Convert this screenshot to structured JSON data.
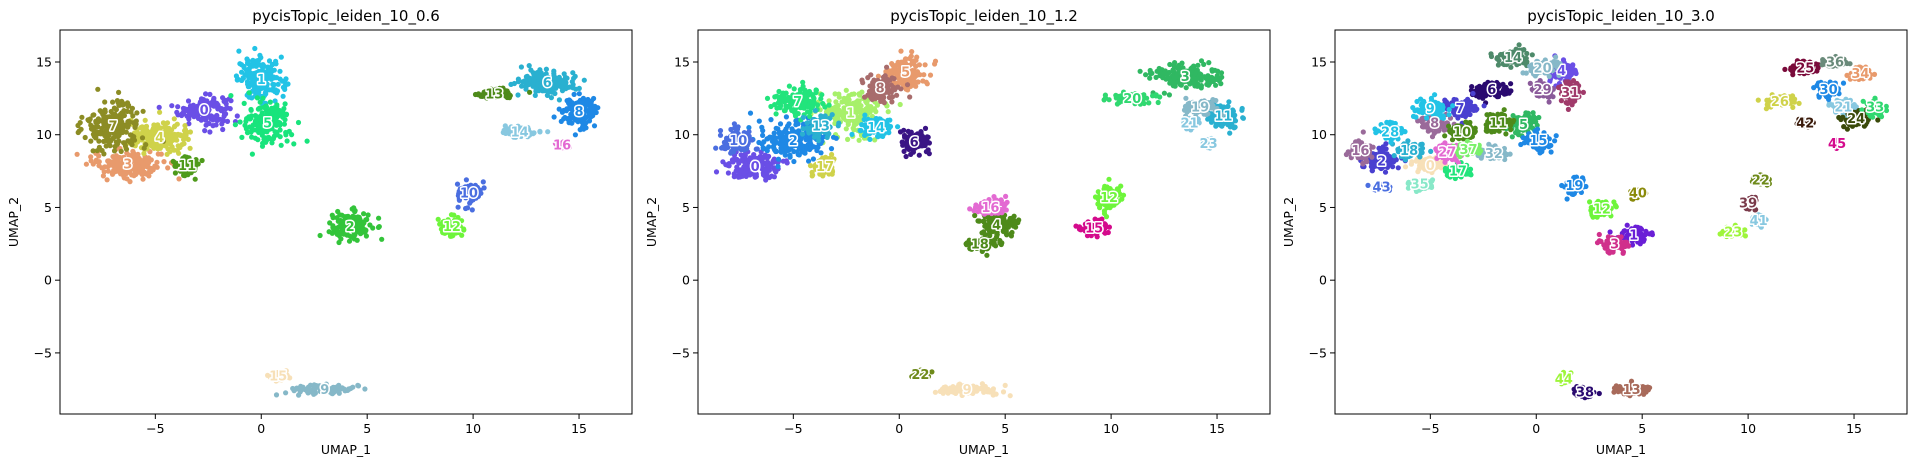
{
  "chart_data": [
    {
      "type": "scatter",
      "title": "pycisTopic_leiden_10_0.6",
      "xlabel": "UMAP_1",
      "ylabel": "UMAP_2",
      "xlim": [
        -9.5,
        17.5
      ],
      "ylim": [
        -9.2,
        17.2
      ],
      "xticks": [
        -5,
        0,
        5,
        10,
        15
      ],
      "yticks": [
        -5,
        0,
        5,
        10,
        15
      ],
      "clusters": [
        {
          "label": "0",
          "x": -2.7,
          "y": 11.7,
          "sx": 1.1,
          "sy": 0.9,
          "color": "#6a4fe6"
        },
        {
          "label": "1",
          "x": 0.0,
          "y": 13.8,
          "sx": 1.0,
          "sy": 1.3,
          "color": "#22c3e6"
        },
        {
          "label": "2",
          "x": 4.2,
          "y": 3.7,
          "sx": 0.9,
          "sy": 0.9,
          "color": "#33c43a"
        },
        {
          "label": "3",
          "x": -6.3,
          "y": 8.0,
          "sx": 1.5,
          "sy": 0.9,
          "color": "#e89a6c"
        },
        {
          "label": "4",
          "x": -4.8,
          "y": 9.8,
          "sx": 1.4,
          "sy": 1.0,
          "color": "#cfd24a"
        },
        {
          "label": "5",
          "x": 0.3,
          "y": 10.8,
          "sx": 1.0,
          "sy": 1.3,
          "color": "#18e47c"
        },
        {
          "label": "6",
          "x": 13.5,
          "y": 13.6,
          "sx": 1.3,
          "sy": 0.8,
          "color": "#2ab0d0"
        },
        {
          "label": "7",
          "x": -7.0,
          "y": 10.6,
          "sx": 1.2,
          "sy": 1.4,
          "color": "#8c8c24"
        },
        {
          "label": "8",
          "x": 15.0,
          "y": 11.6,
          "sx": 0.8,
          "sy": 0.9,
          "color": "#1e88e5"
        },
        {
          "label": "9",
          "x": 3.0,
          "y": -7.5,
          "sx": 1.4,
          "sy": 0.3,
          "color": "#86b8c8"
        },
        {
          "label": "10",
          "x": 9.8,
          "y": 6.0,
          "sx": 0.5,
          "sy": 0.7,
          "color": "#4a6ee0"
        },
        {
          "label": "11",
          "x": -3.5,
          "y": 7.9,
          "sx": 0.5,
          "sy": 0.6,
          "color": "#4e9a1a"
        },
        {
          "label": "12",
          "x": 9.0,
          "y": 3.7,
          "sx": 0.5,
          "sy": 0.5,
          "color": "#6ef53b"
        },
        {
          "label": "13",
          "x": 11.0,
          "y": 12.8,
          "sx": 0.8,
          "sy": 0.3,
          "color": "#4e8a1a"
        },
        {
          "label": "14",
          "x": 12.2,
          "y": 10.2,
          "sx": 0.7,
          "sy": 0.3,
          "color": "#88c8e0"
        },
        {
          "label": "15",
          "x": 0.8,
          "y": -6.6,
          "sx": 0.3,
          "sy": 0.3,
          "color": "#f7e0b8"
        },
        {
          "label": "16",
          "x": 14.2,
          "y": 9.3,
          "sx": 0.2,
          "sy": 0.2,
          "color": "#e36ad2"
        }
      ]
    },
    {
      "type": "scatter",
      "title": "pycisTopic_leiden_10_1.2",
      "xlabel": "UMAP_1",
      "ylabel": "UMAP_2",
      "xlim": [
        -9.5,
        17.5
      ],
      "ylim": [
        -9.2,
        17.2
      ],
      "xticks": [
        -5,
        0,
        5,
        10,
        15
      ],
      "yticks": [
        -5,
        0,
        5,
        10,
        15
      ],
      "clusters": [
        {
          "label": "0",
          "x": -6.8,
          "y": 7.8,
          "sx": 1.2,
          "sy": 0.8,
          "color": "#6a4fe6"
        },
        {
          "label": "1",
          "x": -2.3,
          "y": 11.5,
          "sx": 1.3,
          "sy": 1.3,
          "color": "#a7f06a"
        },
        {
          "label": "2",
          "x": -5.0,
          "y": 9.6,
          "sx": 1.4,
          "sy": 1.2,
          "color": "#1e88e5"
        },
        {
          "label": "3",
          "x": 13.5,
          "y": 14.0,
          "sx": 1.6,
          "sy": 0.8,
          "color": "#30b862"
        },
        {
          "label": "4",
          "x": 4.6,
          "y": 3.8,
          "sx": 0.9,
          "sy": 0.8,
          "color": "#4e8a1a"
        },
        {
          "label": "5",
          "x": 0.3,
          "y": 14.3,
          "sx": 0.9,
          "sy": 1.0,
          "color": "#e89a6c"
        },
        {
          "label": "6",
          "x": 0.7,
          "y": 9.5,
          "sx": 0.7,
          "sy": 0.7,
          "color": "#3a1485"
        },
        {
          "label": "7",
          "x": -4.8,
          "y": 12.3,
          "sx": 1.1,
          "sy": 0.9,
          "color": "#22e47c"
        },
        {
          "label": "8",
          "x": -0.9,
          "y": 13.2,
          "sx": 0.7,
          "sy": 0.8,
          "color": "#a86c6c"
        },
        {
          "label": "9",
          "x": 3.2,
          "y": -7.5,
          "sx": 1.4,
          "sy": 0.3,
          "color": "#f7e0b8"
        },
        {
          "label": "10",
          "x": -7.6,
          "y": 9.6,
          "sx": 0.6,
          "sy": 0.8,
          "color": "#4a6ee0"
        },
        {
          "label": "11",
          "x": 15.3,
          "y": 11.3,
          "sx": 0.6,
          "sy": 0.8,
          "color": "#2ab0d0"
        },
        {
          "label": "12",
          "x": 9.9,
          "y": 5.7,
          "sx": 0.5,
          "sy": 0.7,
          "color": "#6ef53b"
        },
        {
          "label": "13",
          "x": -3.7,
          "y": 10.6,
          "sx": 0.7,
          "sy": 0.7,
          "color": "#2ab0d0"
        },
        {
          "label": "14",
          "x": -1.1,
          "y": 10.5,
          "sx": 0.7,
          "sy": 0.6,
          "color": "#22c3e6"
        },
        {
          "label": "15",
          "x": 9.2,
          "y": 3.6,
          "sx": 0.6,
          "sy": 0.5,
          "color": "#d40a8c"
        },
        {
          "label": "16",
          "x": 4.3,
          "y": 5.0,
          "sx": 0.7,
          "sy": 0.5,
          "color": "#e36ad2"
        },
        {
          "label": "17",
          "x": -3.5,
          "y": 7.8,
          "sx": 0.5,
          "sy": 0.6,
          "color": "#cfd24a"
        },
        {
          "label": "18",
          "x": 3.8,
          "y": 2.5,
          "sx": 0.6,
          "sy": 0.4,
          "color": "#4e8a1a"
        },
        {
          "label": "19",
          "x": 14.2,
          "y": 11.9,
          "sx": 0.6,
          "sy": 0.5,
          "color": "#86b8c8"
        },
        {
          "label": "20",
          "x": 11.0,
          "y": 12.5,
          "sx": 0.9,
          "sy": 0.3,
          "color": "#30d870"
        },
        {
          "label": "21",
          "x": 13.7,
          "y": 10.8,
          "sx": 0.4,
          "sy": 0.3,
          "color": "#88c8e0"
        },
        {
          "label": "22",
          "x": 1.0,
          "y": -6.5,
          "sx": 0.3,
          "sy": 0.2,
          "color": "#6e8a1a"
        },
        {
          "label": "23",
          "x": 14.6,
          "y": 9.4,
          "sx": 0.2,
          "sy": 0.2,
          "color": "#88c8e0"
        }
      ]
    },
    {
      "type": "scatter",
      "title": "pycisTopic_leiden_10_3.0",
      "xlabel": "UMAP_1",
      "ylabel": "UMAP_2",
      "xlim": [
        -9.5,
        17.5
      ],
      "ylim": [
        -9.2,
        17.2
      ],
      "xticks": [
        -5,
        0,
        5,
        10,
        15
      ],
      "yticks": [
        -5,
        0,
        5,
        10,
        15
      ],
      "clusters": [
        {
          "label": "0",
          "x": -5.0,
          "y": 7.9,
          "sx": 0.6,
          "sy": 0.5,
          "color": "#f7e0b8"
        },
        {
          "label": "1",
          "x": 4.6,
          "y": 3.1,
          "sx": 0.6,
          "sy": 0.5,
          "color": "#6a1fd6"
        },
        {
          "label": "2",
          "x": -7.3,
          "y": 8.2,
          "sx": 0.7,
          "sy": 0.8,
          "color": "#4a40d0"
        },
        {
          "label": "3",
          "x": 3.7,
          "y": 2.5,
          "sx": 0.6,
          "sy": 0.5,
          "color": "#d0308c"
        },
        {
          "label": "4",
          "x": 1.2,
          "y": 14.4,
          "sx": 0.6,
          "sy": 0.7,
          "color": "#6a4fe6"
        },
        {
          "label": "5",
          "x": -0.6,
          "y": 10.7,
          "sx": 0.6,
          "sy": 0.7,
          "color": "#30b862"
        },
        {
          "label": "6",
          "x": -2.1,
          "y": 13.1,
          "sx": 0.8,
          "sy": 0.5,
          "color": "#2a0a70"
        },
        {
          "label": "7",
          "x": -3.6,
          "y": 11.8,
          "sx": 0.6,
          "sy": 0.6,
          "color": "#4a40d0"
        },
        {
          "label": "8",
          "x": -4.8,
          "y": 10.8,
          "sx": 0.6,
          "sy": 0.6,
          "color": "#9a6a9a"
        },
        {
          "label": "9",
          "x": -5.0,
          "y": 11.8,
          "sx": 0.7,
          "sy": 0.6,
          "color": "#22c3e6"
        },
        {
          "label": "10",
          "x": -3.5,
          "y": 10.2,
          "sx": 0.6,
          "sy": 0.5,
          "color": "#4e8a1a"
        },
        {
          "label": "11",
          "x": -1.8,
          "y": 10.8,
          "sx": 0.6,
          "sy": 0.6,
          "color": "#4e8a1a"
        },
        {
          "label": "12",
          "x": 3.1,
          "y": 4.9,
          "sx": 0.5,
          "sy": 0.5,
          "color": "#6ef53b"
        },
        {
          "label": "13",
          "x": 4.5,
          "y": -7.5,
          "sx": 0.9,
          "sy": 0.3,
          "color": "#a86a5a"
        },
        {
          "label": "14",
          "x": -1.1,
          "y": 15.3,
          "sx": 0.7,
          "sy": 0.5,
          "color": "#4e8a6a"
        },
        {
          "label": "15",
          "x": 0.1,
          "y": 9.6,
          "sx": 0.6,
          "sy": 0.6,
          "color": "#1e88e5"
        },
        {
          "label": "16",
          "x": -8.3,
          "y": 8.9,
          "sx": 0.5,
          "sy": 0.6,
          "color": "#9a6a9a"
        },
        {
          "label": "17",
          "x": -3.7,
          "y": 7.5,
          "sx": 0.6,
          "sy": 0.4,
          "color": "#22e47c"
        },
        {
          "label": "18",
          "x": -6.0,
          "y": 8.9,
          "sx": 0.6,
          "sy": 0.5,
          "color": "#2ab0d0"
        },
        {
          "label": "19",
          "x": 1.8,
          "y": 6.5,
          "sx": 0.4,
          "sy": 0.6,
          "color": "#1e88e5"
        },
        {
          "label": "20",
          "x": 0.3,
          "y": 14.6,
          "sx": 0.6,
          "sy": 0.5,
          "color": "#86b8c8"
        },
        {
          "label": "21",
          "x": 14.5,
          "y": 11.9,
          "sx": 0.5,
          "sy": 0.4,
          "color": "#88c8e0"
        },
        {
          "label": "22",
          "x": 10.6,
          "y": 6.9,
          "sx": 0.3,
          "sy": 0.3,
          "color": "#6e8a1a"
        },
        {
          "label": "23",
          "x": 9.3,
          "y": 3.3,
          "sx": 0.5,
          "sy": 0.3,
          "color": "#9ef53b"
        },
        {
          "label": "24",
          "x": 15.1,
          "y": 11.1,
          "sx": 0.5,
          "sy": 0.5,
          "color": "#3a4a0a"
        },
        {
          "label": "25",
          "x": 12.7,
          "y": 14.6,
          "sx": 0.5,
          "sy": 0.4,
          "color": "#7a0a3a"
        },
        {
          "label": "26",
          "x": 11.5,
          "y": 12.3,
          "sx": 0.6,
          "sy": 0.3,
          "color": "#cfd24a"
        },
        {
          "label": "27",
          "x": -4.2,
          "y": 8.8,
          "sx": 0.5,
          "sy": 0.5,
          "color": "#e36ad2"
        },
        {
          "label": "28",
          "x": -6.9,
          "y": 10.2,
          "sx": 0.5,
          "sy": 0.5,
          "color": "#22c3e6"
        },
        {
          "label": "29",
          "x": 0.3,
          "y": 13.1,
          "sx": 0.5,
          "sy": 0.5,
          "color": "#8a5a9a"
        },
        {
          "label": "30",
          "x": 13.8,
          "y": 13.1,
          "sx": 0.5,
          "sy": 0.5,
          "color": "#1e88e5"
        },
        {
          "label": "31",
          "x": 1.6,
          "y": 12.9,
          "sx": 0.4,
          "sy": 0.6,
          "color": "#a03a6a"
        },
        {
          "label": "32",
          "x": -2.0,
          "y": 8.7,
          "sx": 0.6,
          "sy": 0.4,
          "color": "#86b8c8"
        },
        {
          "label": "33",
          "x": 16.0,
          "y": 11.9,
          "sx": 0.4,
          "sy": 0.5,
          "color": "#30d870"
        },
        {
          "label": "34",
          "x": 15.3,
          "y": 14.2,
          "sx": 0.4,
          "sy": 0.4,
          "color": "#e89a6c"
        },
        {
          "label": "35",
          "x": -5.5,
          "y": 6.6,
          "sx": 0.5,
          "sy": 0.3,
          "color": "#88e8c8"
        },
        {
          "label": "36",
          "x": 14.1,
          "y": 15.0,
          "sx": 0.5,
          "sy": 0.3,
          "color": "#6a8a7a"
        },
        {
          "label": "37",
          "x": -3.2,
          "y": 9.0,
          "sx": 0.5,
          "sy": 0.4,
          "color": "#7af06a"
        },
        {
          "label": "38",
          "x": 2.3,
          "y": -7.7,
          "sx": 0.4,
          "sy": 0.3,
          "color": "#2a0a70"
        },
        {
          "label": "39",
          "x": 10.0,
          "y": 5.3,
          "sx": 0.3,
          "sy": 0.3,
          "color": "#7a3a4a"
        },
        {
          "label": "40",
          "x": 4.8,
          "y": 6.0,
          "sx": 0.3,
          "sy": 0.3,
          "color": "#8a8a0a"
        },
        {
          "label": "41",
          "x": 10.5,
          "y": 4.1,
          "sx": 0.3,
          "sy": 0.3,
          "color": "#88c8e0"
        },
        {
          "label": "42",
          "x": 12.7,
          "y": 10.8,
          "sx": 0.3,
          "sy": 0.2,
          "color": "#3a1a0a"
        },
        {
          "label": "43",
          "x": -7.3,
          "y": 6.4,
          "sx": 0.4,
          "sy": 0.2,
          "color": "#4a6ee0"
        },
        {
          "label": "44",
          "x": 1.3,
          "y": -6.8,
          "sx": 0.2,
          "sy": 0.3,
          "color": "#9ef53b"
        },
        {
          "label": "45",
          "x": 14.2,
          "y": 9.4,
          "sx": 0.2,
          "sy": 0.2,
          "color": "#d40a8c"
        }
      ]
    }
  ]
}
